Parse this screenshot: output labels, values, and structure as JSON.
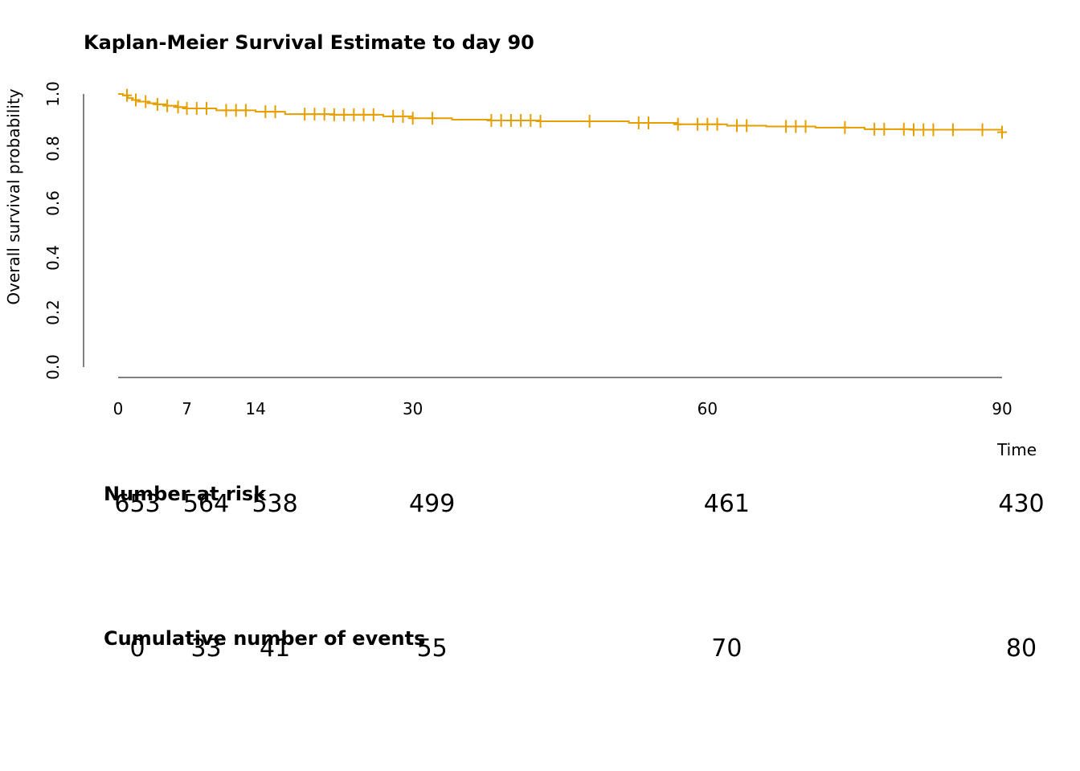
{
  "chart_data": {
    "type": "line",
    "title": "Kaplan-Meier Survival Estimate to day 90",
    "xlabel": "Time",
    "ylabel": "Overall survival probability",
    "xlim": [
      0,
      90
    ],
    "ylim": [
      0,
      1
    ],
    "x_ticks": [
      0,
      7,
      14,
      30,
      60,
      90
    ],
    "y_ticks": [
      "0.0",
      "0.2",
      "0.4",
      "0.6",
      "0.8",
      "1.0"
    ],
    "grid": false,
    "legend": "none",
    "series": [
      {
        "color": "#E69F00",
        "steps": [
          {
            "x": 0,
            "y": 1.0
          },
          {
            "x": 0.5,
            "y": 0.995
          },
          {
            "x": 1,
            "y": 0.985
          },
          {
            "x": 1.5,
            "y": 0.978
          },
          {
            "x": 2,
            "y": 0.972
          },
          {
            "x": 3,
            "y": 0.966
          },
          {
            "x": 4,
            "y": 0.962
          },
          {
            "x": 5,
            "y": 0.957
          },
          {
            "x": 6,
            "y": 0.952
          },
          {
            "x": 7,
            "y": 0.947
          },
          {
            "x": 10,
            "y": 0.94
          },
          {
            "x": 14,
            "y": 0.935
          },
          {
            "x": 17,
            "y": 0.926
          },
          {
            "x": 22,
            "y": 0.924
          },
          {
            "x": 27,
            "y": 0.918
          },
          {
            "x": 30,
            "y": 0.911
          },
          {
            "x": 34,
            "y": 0.906
          },
          {
            "x": 38,
            "y": 0.903
          },
          {
            "x": 43,
            "y": 0.9
          },
          {
            "x": 52,
            "y": 0.894
          },
          {
            "x": 57,
            "y": 0.889
          },
          {
            "x": 62,
            "y": 0.884
          },
          {
            "x": 66,
            "y": 0.881
          },
          {
            "x": 71,
            "y": 0.877
          },
          {
            "x": 76,
            "y": 0.871
          },
          {
            "x": 81,
            "y": 0.869
          },
          {
            "x": 90,
            "y": 0.86
          }
        ],
        "censored": [
          0.9,
          1.8,
          2.8,
          4,
          5,
          6.1,
          7,
          8,
          9,
          11,
          12,
          13,
          15,
          16,
          19,
          20,
          21,
          22,
          23,
          24,
          25,
          26,
          28,
          29,
          30,
          32,
          38,
          39,
          40,
          41,
          42,
          43,
          48,
          53,
          54,
          57,
          59,
          60,
          61,
          63,
          64,
          68,
          69,
          70,
          74,
          77,
          78,
          80,
          81,
          82,
          83,
          85,
          88,
          90
        ]
      }
    ],
    "risk_table": {
      "title": "Number at risk",
      "times": [
        0,
        7,
        14,
        30,
        60,
        90
      ],
      "values": [
        "653",
        "564",
        "538",
        "499",
        "461",
        "430"
      ]
    },
    "events_table": {
      "title": "Cumulative number of events",
      "times": [
        0,
        7,
        14,
        30,
        60,
        90
      ],
      "values": [
        "0",
        "33",
        "41",
        "55",
        "70",
        "80"
      ]
    }
  }
}
